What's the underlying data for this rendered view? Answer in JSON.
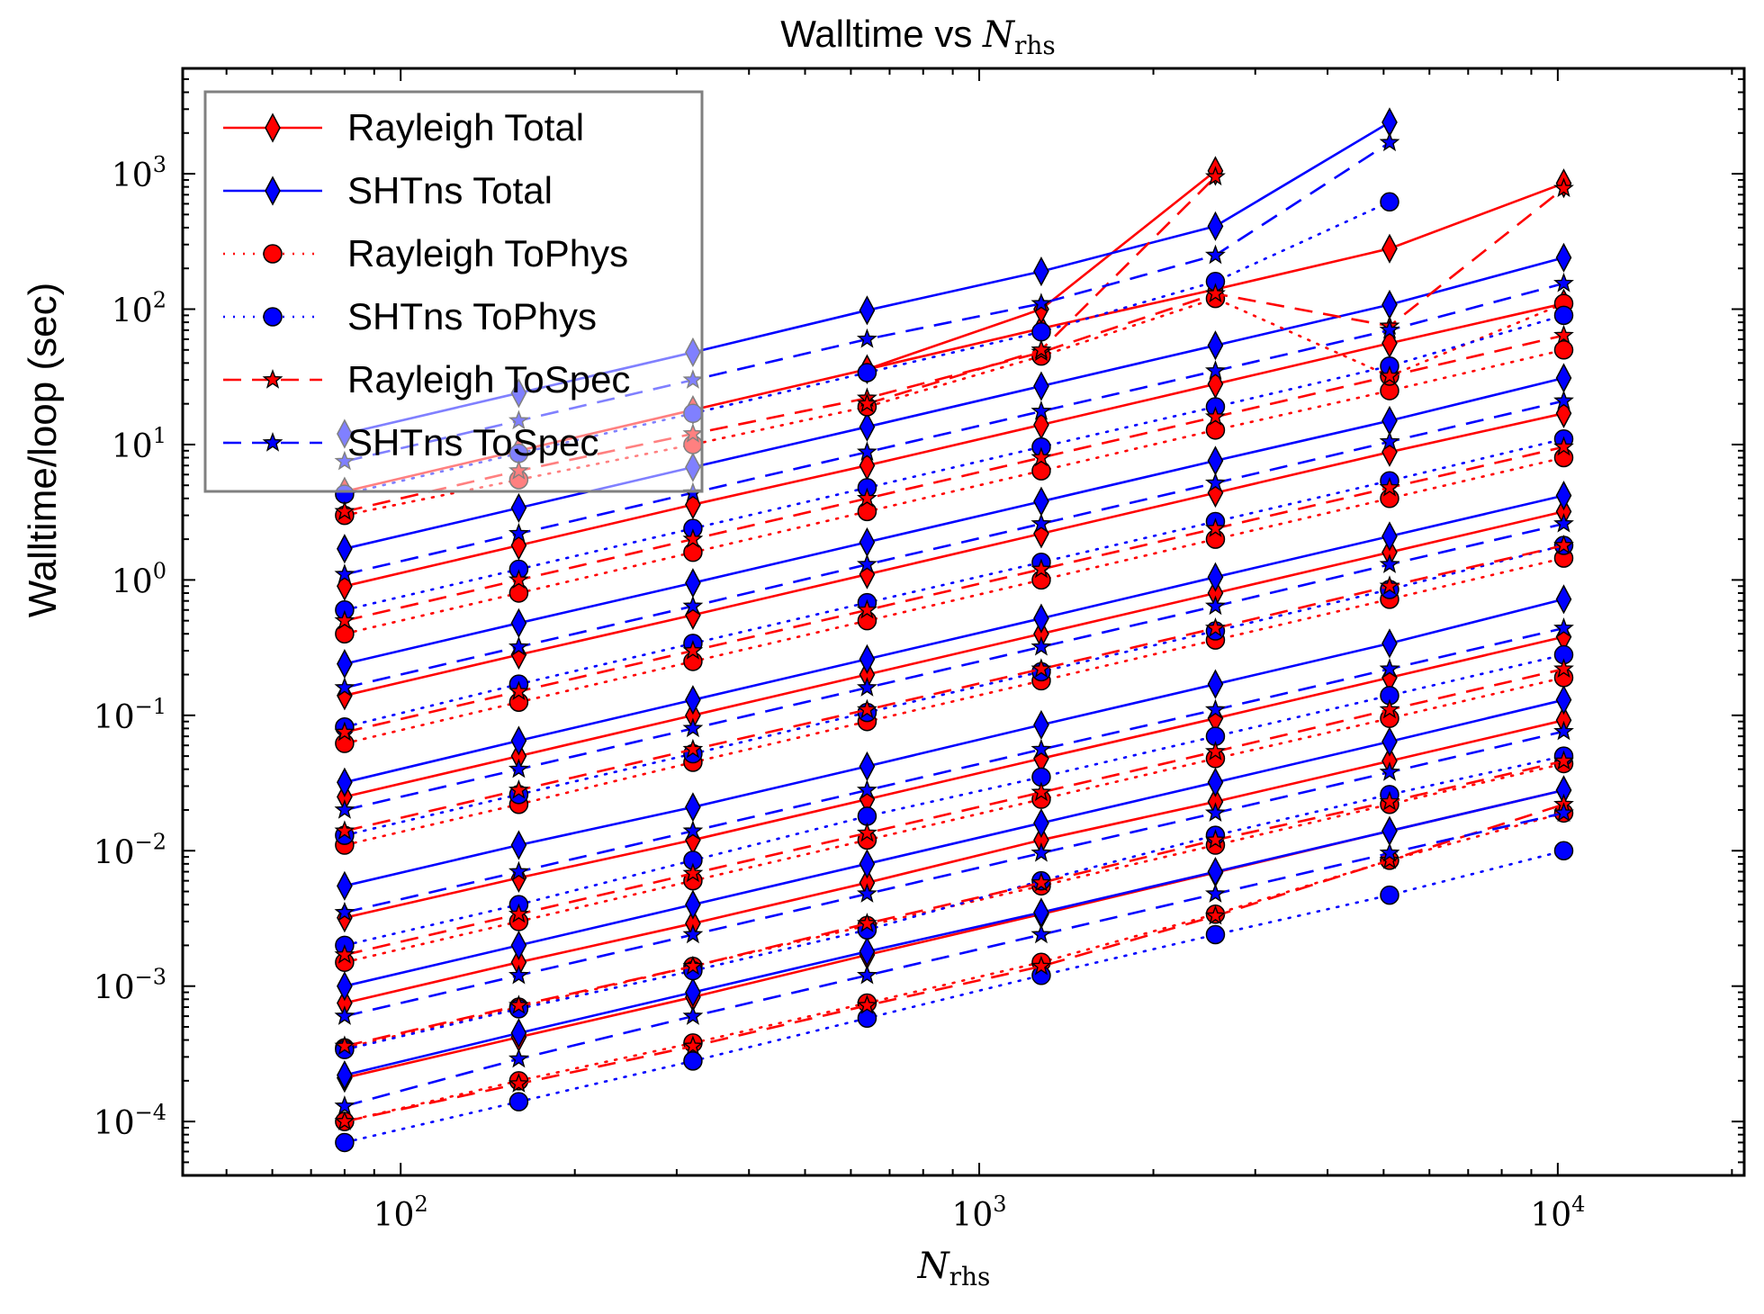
{
  "chart_data": {
    "type": "line",
    "title": {
      "text": "Walltime vs ",
      "math": "N",
      "sub": "rhs"
    },
    "xlabel": {
      "math": "N",
      "sub": "rhs"
    },
    "ylabel": "Walltime/loop (sec)",
    "xscale": "log",
    "yscale": "log",
    "xlim": [
      42,
      21000
    ],
    "ylim": [
      4e-05,
      6000
    ],
    "x_ticks": [
      {
        "base": "10",
        "exp": "2",
        "value": 100
      },
      {
        "base": "10",
        "exp": "3",
        "value": 1000
      },
      {
        "base": "10",
        "exp": "4",
        "value": 10000
      }
    ],
    "y_ticks": [
      {
        "base": "10",
        "exp": "−4",
        "value": 0.0001
      },
      {
        "base": "10",
        "exp": "−3",
        "value": 0.001
      },
      {
        "base": "10",
        "exp": "−2",
        "value": 0.01
      },
      {
        "base": "10",
        "exp": "−1",
        "value": 0.1
      },
      {
        "base": "10",
        "exp": "0",
        "value": 1
      },
      {
        "base": "10",
        "exp": "1",
        "value": 10
      },
      {
        "base": "10",
        "exp": "2",
        "value": 100
      },
      {
        "base": "10",
        "exp": "3",
        "value": 1000
      }
    ],
    "grid": false,
    "legend_position": "top-left",
    "x": [
      80,
      160,
      320,
      640,
      1280,
      2560,
      5120,
      10240
    ],
    "series_styles": [
      {
        "name": "Rayleigh Total",
        "color": "#ff0000",
        "dash": "solid",
        "marker": "diamond"
      },
      {
        "name": "SHTns Total",
        "color": "#0000ff",
        "dash": "solid",
        "marker": "diamond"
      },
      {
        "name": "Rayleigh ToPhys",
        "color": "#ff0000",
        "dash": "dotted",
        "marker": "circle"
      },
      {
        "name": "SHTns ToPhys",
        "color": "#0000ff",
        "dash": "dotted",
        "marker": "circle"
      },
      {
        "name": "Rayleigh ToSpec",
        "color": "#ff0000",
        "dash": "dashed",
        "marker": "star"
      },
      {
        "name": "SHTns ToSpec",
        "color": "#0000ff",
        "dash": "dashed",
        "marker": "star"
      }
    ],
    "series": [
      {
        "name": "Rayleigh Total",
        "style": 0,
        "x": [
          80,
          160,
          320,
          640,
          1280,
          2560,
          5120,
          10240
        ],
        "values": [
          0.00021,
          0.00042,
          0.00083,
          0.0017,
          0.0034,
          0.0069,
          0.014,
          0.028
        ]
      },
      {
        "name": "Rayleigh Total",
        "style": 0,
        "x": [
          80,
          160,
          320,
          640,
          1280,
          2560,
          5120,
          10240
        ],
        "values": [
          0.00075,
          0.0015,
          0.0029,
          0.0058,
          0.012,
          0.023,
          0.046,
          0.092
        ]
      },
      {
        "name": "Rayleigh Total",
        "style": 0,
        "x": [
          80,
          160,
          320,
          640,
          1280,
          2560,
          5120,
          10240
        ],
        "values": [
          0.0032,
          0.0063,
          0.012,
          0.024,
          0.048,
          0.095,
          0.19,
          0.38
        ]
      },
      {
        "name": "Rayleigh Total",
        "style": 0,
        "x": [
          80,
          160,
          320,
          640,
          1280,
          2560,
          5120,
          10240
        ],
        "values": [
          0.025,
          0.05,
          0.1,
          0.2,
          0.4,
          0.8,
          1.6,
          3.2
        ]
      },
      {
        "name": "Rayleigh Total",
        "style": 0,
        "x": [
          80,
          160,
          320,
          640,
          1280,
          2560,
          5120,
          10240
        ],
        "values": [
          0.14,
          0.28,
          0.55,
          1.1,
          2.2,
          4.4,
          8.8,
          17
        ]
      },
      {
        "name": "Rayleigh Total",
        "style": 0,
        "x": [
          80,
          160,
          320,
          640,
          1280,
          2560,
          5120,
          10240
        ],
        "values": [
          0.9,
          1.8,
          3.6,
          7,
          14,
          28,
          56,
          110
        ]
      },
      {
        "name": "Rayleigh Total",
        "style": 0,
        "x": [
          80,
          160,
          320,
          640,
          1280,
          2560,
          5120,
          10240
        ],
        "values": [
          4.5,
          9,
          18,
          36,
          72,
          140,
          280,
          850
        ]
      },
      {
        "name": "Rayleigh Total",
        "style": 0,
        "x": [
          640,
          1280,
          2560
        ],
        "values": [
          36,
          100,
          1050
        ]
      },
      {
        "name": "SHTns Total",
        "style": 1,
        "x": [
          80,
          160,
          320,
          640,
          1280,
          2560,
          5120,
          10240
        ],
        "values": [
          0.00022,
          0.00045,
          0.0009,
          0.0018,
          0.0035,
          0.007,
          0.014,
          0.028
        ]
      },
      {
        "name": "SHTns Total",
        "style": 1,
        "x": [
          80,
          160,
          320,
          640,
          1280,
          2560,
          5120,
          10240
        ],
        "values": [
          0.001,
          0.002,
          0.004,
          0.008,
          0.016,
          0.032,
          0.064,
          0.13
        ]
      },
      {
        "name": "SHTns Total",
        "style": 1,
        "x": [
          80,
          160,
          320,
          640,
          1280,
          2560,
          5120,
          10240
        ],
        "values": [
          0.0055,
          0.011,
          0.021,
          0.042,
          0.085,
          0.17,
          0.34,
          0.72
        ]
      },
      {
        "name": "SHTns Total",
        "style": 1,
        "x": [
          80,
          160,
          320,
          640,
          1280,
          2560,
          5120,
          10240
        ],
        "values": [
          0.032,
          0.065,
          0.13,
          0.26,
          0.52,
          1.05,
          2.1,
          4.2
        ]
      },
      {
        "name": "SHTns Total",
        "style": 1,
        "x": [
          80,
          160,
          320,
          640,
          1280,
          2560,
          5120,
          10240
        ],
        "values": [
          0.24,
          0.48,
          0.95,
          1.9,
          3.8,
          7.6,
          15,
          31
        ]
      },
      {
        "name": "SHTns Total",
        "style": 1,
        "x": [
          80,
          160,
          320,
          640,
          1280,
          2560,
          5120,
          10240
        ],
        "values": [
          1.7,
          3.4,
          6.8,
          13.5,
          27,
          54,
          108,
          240
        ]
      },
      {
        "name": "SHTns Total",
        "style": 1,
        "x": [
          80,
          160,
          320,
          640,
          1280,
          2560,
          5120
        ],
        "values": [
          12,
          24,
          48,
          98,
          190,
          410,
          2400
        ]
      },
      {
        "name": "Rayleigh ToPhys",
        "style": 2,
        "x": [
          80,
          160,
          320,
          640,
          1280,
          2560,
          5120,
          10240
        ],
        "values": [
          0.0001,
          0.0002,
          0.00038,
          0.00075,
          0.0015,
          0.0034,
          0.0085,
          0.019
        ]
      },
      {
        "name": "Rayleigh ToPhys",
        "style": 2,
        "x": [
          80,
          160,
          320,
          640,
          1280,
          2560,
          5120,
          10240
        ],
        "values": [
          0.00035,
          0.0007,
          0.0014,
          0.0028,
          0.0055,
          0.011,
          0.022,
          0.044
        ]
      },
      {
        "name": "Rayleigh ToPhys",
        "style": 2,
        "x": [
          80,
          160,
          320,
          640,
          1280,
          2560,
          5120,
          10240
        ],
        "values": [
          0.0015,
          0.003,
          0.006,
          0.012,
          0.024,
          0.048,
          0.095,
          0.19
        ]
      },
      {
        "name": "Rayleigh ToPhys",
        "style": 2,
        "x": [
          80,
          160,
          320,
          640,
          1280,
          2560,
          5120,
          10240
        ],
        "values": [
          0.011,
          0.022,
          0.045,
          0.09,
          0.18,
          0.36,
          0.72,
          1.45
        ]
      },
      {
        "name": "Rayleigh ToPhys",
        "style": 2,
        "x": [
          80,
          160,
          320,
          640,
          1280,
          2560,
          5120,
          10240
        ],
        "values": [
          0.062,
          0.125,
          0.25,
          0.5,
          1,
          2,
          4,
          8
        ]
      },
      {
        "name": "Rayleigh ToPhys",
        "style": 2,
        "x": [
          80,
          160,
          320,
          640,
          1280,
          2560,
          5120,
          10240
        ],
        "values": [
          0.4,
          0.8,
          1.6,
          3.2,
          6.4,
          12.8,
          25,
          50
        ]
      },
      {
        "name": "Rayleigh ToPhys",
        "style": 2,
        "x": [
          80,
          160,
          320,
          640,
          1280,
          2560,
          5120,
          10240
        ],
        "values": [
          3,
          5.5,
          10,
          19,
          45,
          120,
          32,
          110
        ]
      },
      {
        "name": "SHTns ToPhys",
        "style": 3,
        "x": [
          80,
          160,
          320,
          640,
          1280,
          2560,
          5120,
          10240
        ],
        "values": [
          7e-05,
          0.00014,
          0.00028,
          0.00058,
          0.0012,
          0.0024,
          0.0047,
          0.01
        ]
      },
      {
        "name": "SHTns ToPhys",
        "style": 3,
        "x": [
          80,
          160,
          320,
          640,
          1280,
          2560,
          5120,
          10240
        ],
        "values": [
          0.00034,
          0.00068,
          0.0013,
          0.0026,
          0.006,
          0.013,
          0.026,
          0.05
        ]
      },
      {
        "name": "SHTns ToPhys",
        "style": 3,
        "x": [
          80,
          160,
          320,
          640,
          1280,
          2560,
          5120,
          10240
        ],
        "values": [
          0.002,
          0.004,
          0.0085,
          0.018,
          0.035,
          0.07,
          0.14,
          0.28
        ]
      },
      {
        "name": "SHTns ToPhys",
        "style": 3,
        "x": [
          80,
          160,
          320,
          640,
          1280,
          2560,
          5120,
          10240
        ],
        "values": [
          0.013,
          0.026,
          0.052,
          0.105,
          0.21,
          0.42,
          0.85,
          1.8
        ]
      },
      {
        "name": "SHTns ToPhys",
        "style": 3,
        "x": [
          80,
          160,
          320,
          640,
          1280,
          2560,
          5120,
          10240
        ],
        "values": [
          0.082,
          0.17,
          0.34,
          0.68,
          1.35,
          2.7,
          5.4,
          11
        ]
      },
      {
        "name": "SHTns ToPhys",
        "style": 3,
        "x": [
          80,
          160,
          320,
          640,
          1280,
          2560,
          5120,
          10240
        ],
        "values": [
          0.6,
          1.2,
          2.4,
          4.8,
          9.6,
          19,
          38,
          90
        ]
      },
      {
        "name": "SHTns ToPhys",
        "style": 3,
        "x": [
          80,
          160,
          320,
          640,
          1280,
          2560,
          5120
        ],
        "values": [
          4.3,
          8.6,
          17,
          34,
          68,
          160,
          620
        ]
      },
      {
        "name": "Rayleigh ToSpec",
        "style": 4,
        "x": [
          80,
          160,
          320,
          640,
          1280,
          2560,
          5120,
          10240
        ],
        "values": [
          0.0001,
          0.00019,
          0.00036,
          0.00072,
          0.0014,
          0.0033,
          0.0085,
          0.022
        ]
      },
      {
        "name": "Rayleigh ToSpec",
        "style": 4,
        "x": [
          80,
          160,
          320,
          640,
          1280,
          2560,
          5120,
          10240
        ],
        "values": [
          0.00036,
          0.00072,
          0.0014,
          0.0029,
          0.0058,
          0.012,
          0.023,
          0.046
        ]
      },
      {
        "name": "Rayleigh ToSpec",
        "style": 4,
        "x": [
          80,
          160,
          320,
          640,
          1280,
          2560,
          5120,
          10240
        ],
        "values": [
          0.0017,
          0.0034,
          0.0068,
          0.0135,
          0.027,
          0.054,
          0.11,
          0.22
        ]
      },
      {
        "name": "Rayleigh ToSpec",
        "style": 4,
        "x": [
          80,
          160,
          320,
          640,
          1280,
          2560,
          5120,
          10240
        ],
        "values": [
          0.014,
          0.028,
          0.056,
          0.11,
          0.22,
          0.44,
          0.9,
          1.8
        ]
      },
      {
        "name": "Rayleigh ToSpec",
        "style": 4,
        "x": [
          80,
          160,
          320,
          640,
          1280,
          2560,
          5120,
          10240
        ],
        "values": [
          0.075,
          0.15,
          0.3,
          0.6,
          1.2,
          2.4,
          4.8,
          9.6
        ]
      },
      {
        "name": "Rayleigh ToSpec",
        "style": 4,
        "x": [
          80,
          160,
          320,
          640,
          1280,
          2560,
          5120,
          10240
        ],
        "values": [
          0.5,
          1,
          2,
          4,
          8,
          16,
          32,
          64
        ]
      },
      {
        "name": "Rayleigh ToSpec",
        "style": 4,
        "x": [
          80,
          160,
          320,
          640,
          1280,
          2560,
          5120,
          10240
        ],
        "values": [
          3.2,
          6.4,
          12,
          22,
          48,
          130,
          75,
          780
        ]
      },
      {
        "name": "Rayleigh ToSpec",
        "style": 4,
        "x": [
          640,
          1280,
          2560
        ],
        "values": [
          20,
          50,
          950
        ]
      },
      {
        "name": "SHTns ToSpec",
        "style": 5,
        "x": [
          80,
          160,
          320,
          640,
          1280,
          2560,
          5120,
          10240
        ],
        "values": [
          0.00013,
          0.00029,
          0.0006,
          0.0012,
          0.0024,
          0.0048,
          0.0096,
          0.019
        ]
      },
      {
        "name": "SHTns ToSpec",
        "style": 5,
        "x": [
          80,
          160,
          320,
          640,
          1280,
          2560,
          5120,
          10240
        ],
        "values": [
          0.0006,
          0.0012,
          0.0024,
          0.0048,
          0.0096,
          0.019,
          0.038,
          0.076
        ]
      },
      {
        "name": "SHTns ToSpec",
        "style": 5,
        "x": [
          80,
          160,
          320,
          640,
          1280,
          2560,
          5120,
          10240
        ],
        "values": [
          0.0035,
          0.007,
          0.014,
          0.028,
          0.056,
          0.11,
          0.22,
          0.44
        ]
      },
      {
        "name": "SHTns ToSpec",
        "style": 5,
        "x": [
          80,
          160,
          320,
          640,
          1280,
          2560,
          5120,
          10240
        ],
        "values": [
          0.02,
          0.04,
          0.08,
          0.16,
          0.32,
          0.64,
          1.3,
          2.6
        ]
      },
      {
        "name": "SHTns ToSpec",
        "style": 5,
        "x": [
          80,
          160,
          320,
          640,
          1280,
          2560,
          5120,
          10240
        ],
        "values": [
          0.16,
          0.32,
          0.64,
          1.3,
          2.6,
          5.2,
          10.5,
          21
        ]
      },
      {
        "name": "SHTns ToSpec",
        "style": 5,
        "x": [
          80,
          160,
          320,
          640,
          1280,
          2560,
          5120,
          10240
        ],
        "values": [
          1.1,
          2.2,
          4.4,
          8.8,
          17.6,
          35,
          70,
          155
        ]
      },
      {
        "name": "SHTns ToSpec",
        "style": 5,
        "x": [
          80,
          160,
          320,
          640,
          1280,
          2560,
          5120
        ],
        "values": [
          7.5,
          15,
          30,
          60,
          110,
          250,
          1700
        ]
      }
    ]
  }
}
